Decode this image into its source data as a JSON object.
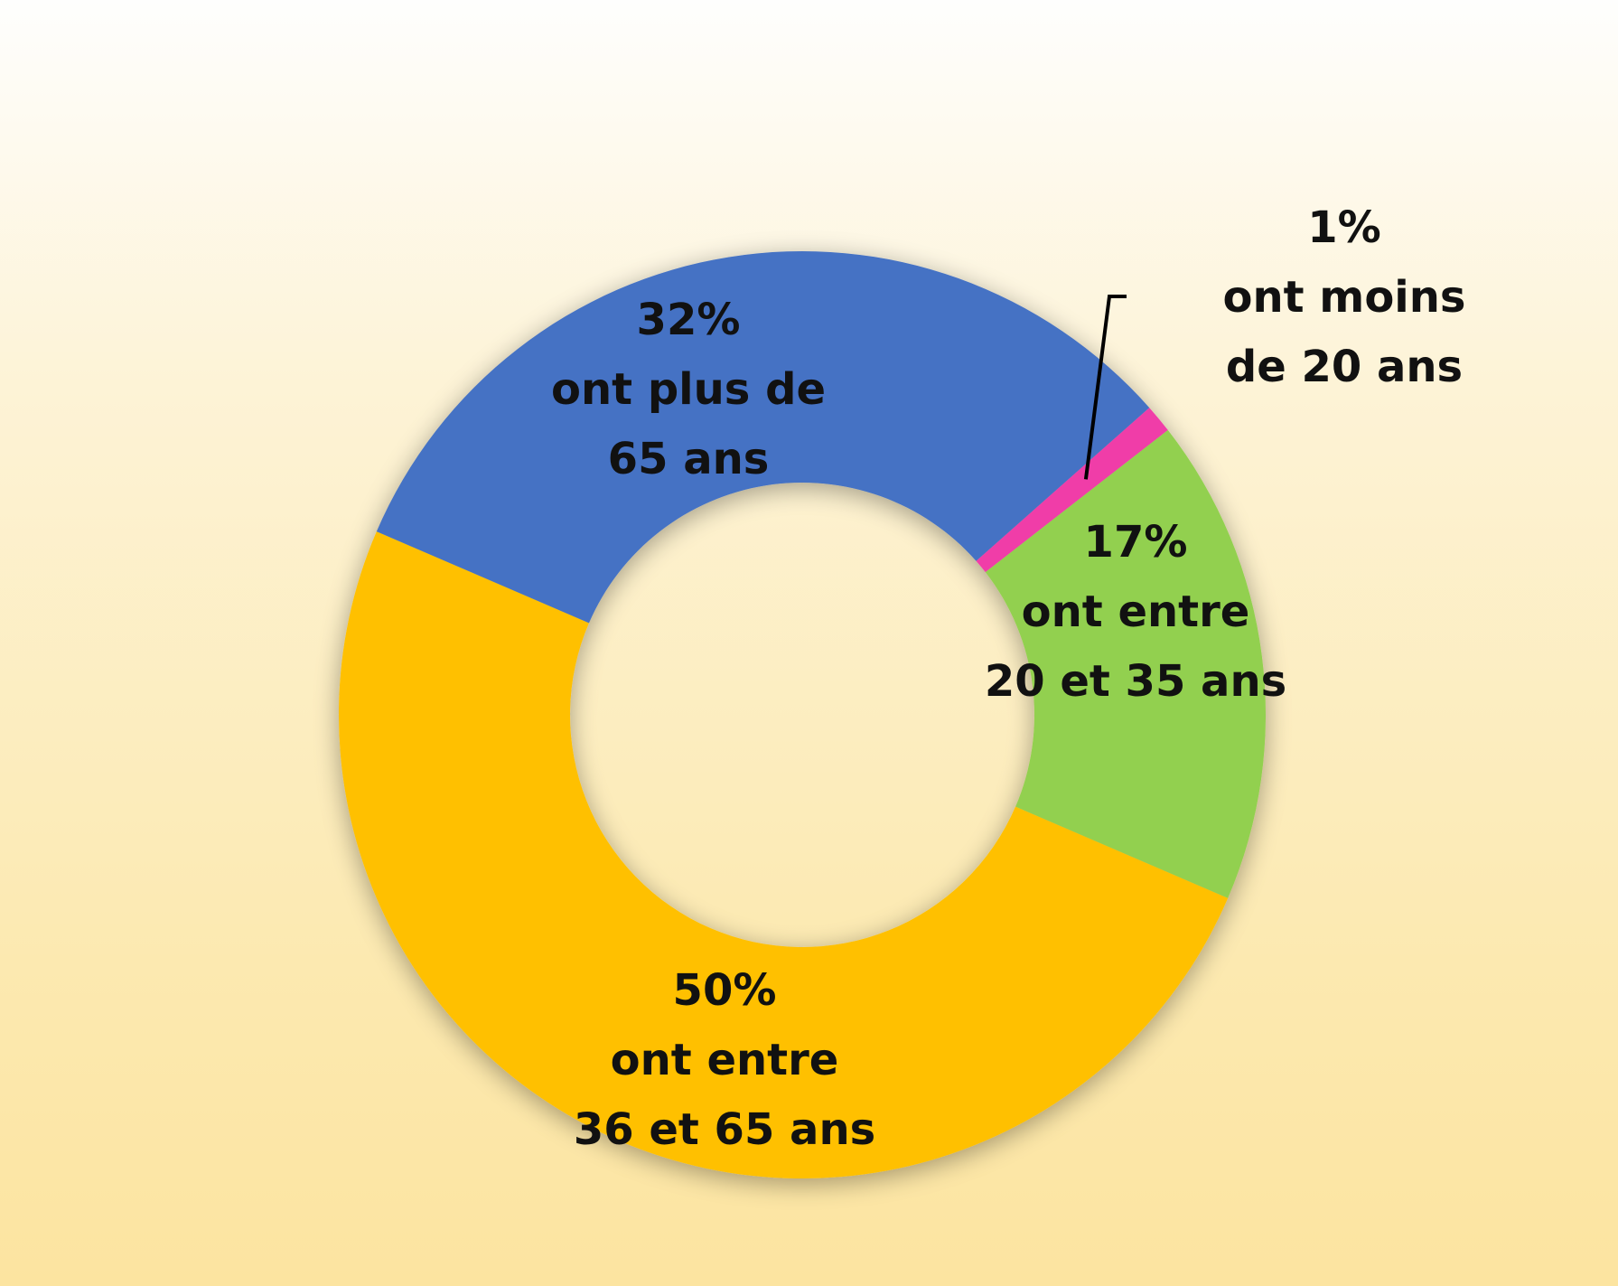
{
  "chart_data": {
    "type": "pie",
    "style": "donut",
    "title": "",
    "slices": [
      {
        "label_lines": [
          "1%",
          "ont moins",
          "de 20 ans"
        ],
        "percent_label": "1%",
        "description": "ont moins de 20 ans",
        "value": 1,
        "color": "#f03ea8"
      },
      {
        "label_lines": [
          "17%",
          "ont entre",
          "20 et 35 ans"
        ],
        "percent_label": "17%",
        "description": "ont entre 20 et 35 ans",
        "value": 17,
        "color": "#92d050"
      },
      {
        "label_lines": [
          "50%",
          "ont entre",
          "36 et 65 ans"
        ],
        "percent_label": "50%",
        "description": "ont entre 36 et 65 ans",
        "value": 50,
        "color": "#ffc000"
      },
      {
        "label_lines": [
          "32%",
          "ont plus de",
          "65 ans"
        ],
        "percent_label": "32%",
        "description": "ont plus de 65 ans",
        "value": 32,
        "color": "#4472c4"
      }
    ],
    "legend": "none",
    "label_color": "#111111"
  }
}
